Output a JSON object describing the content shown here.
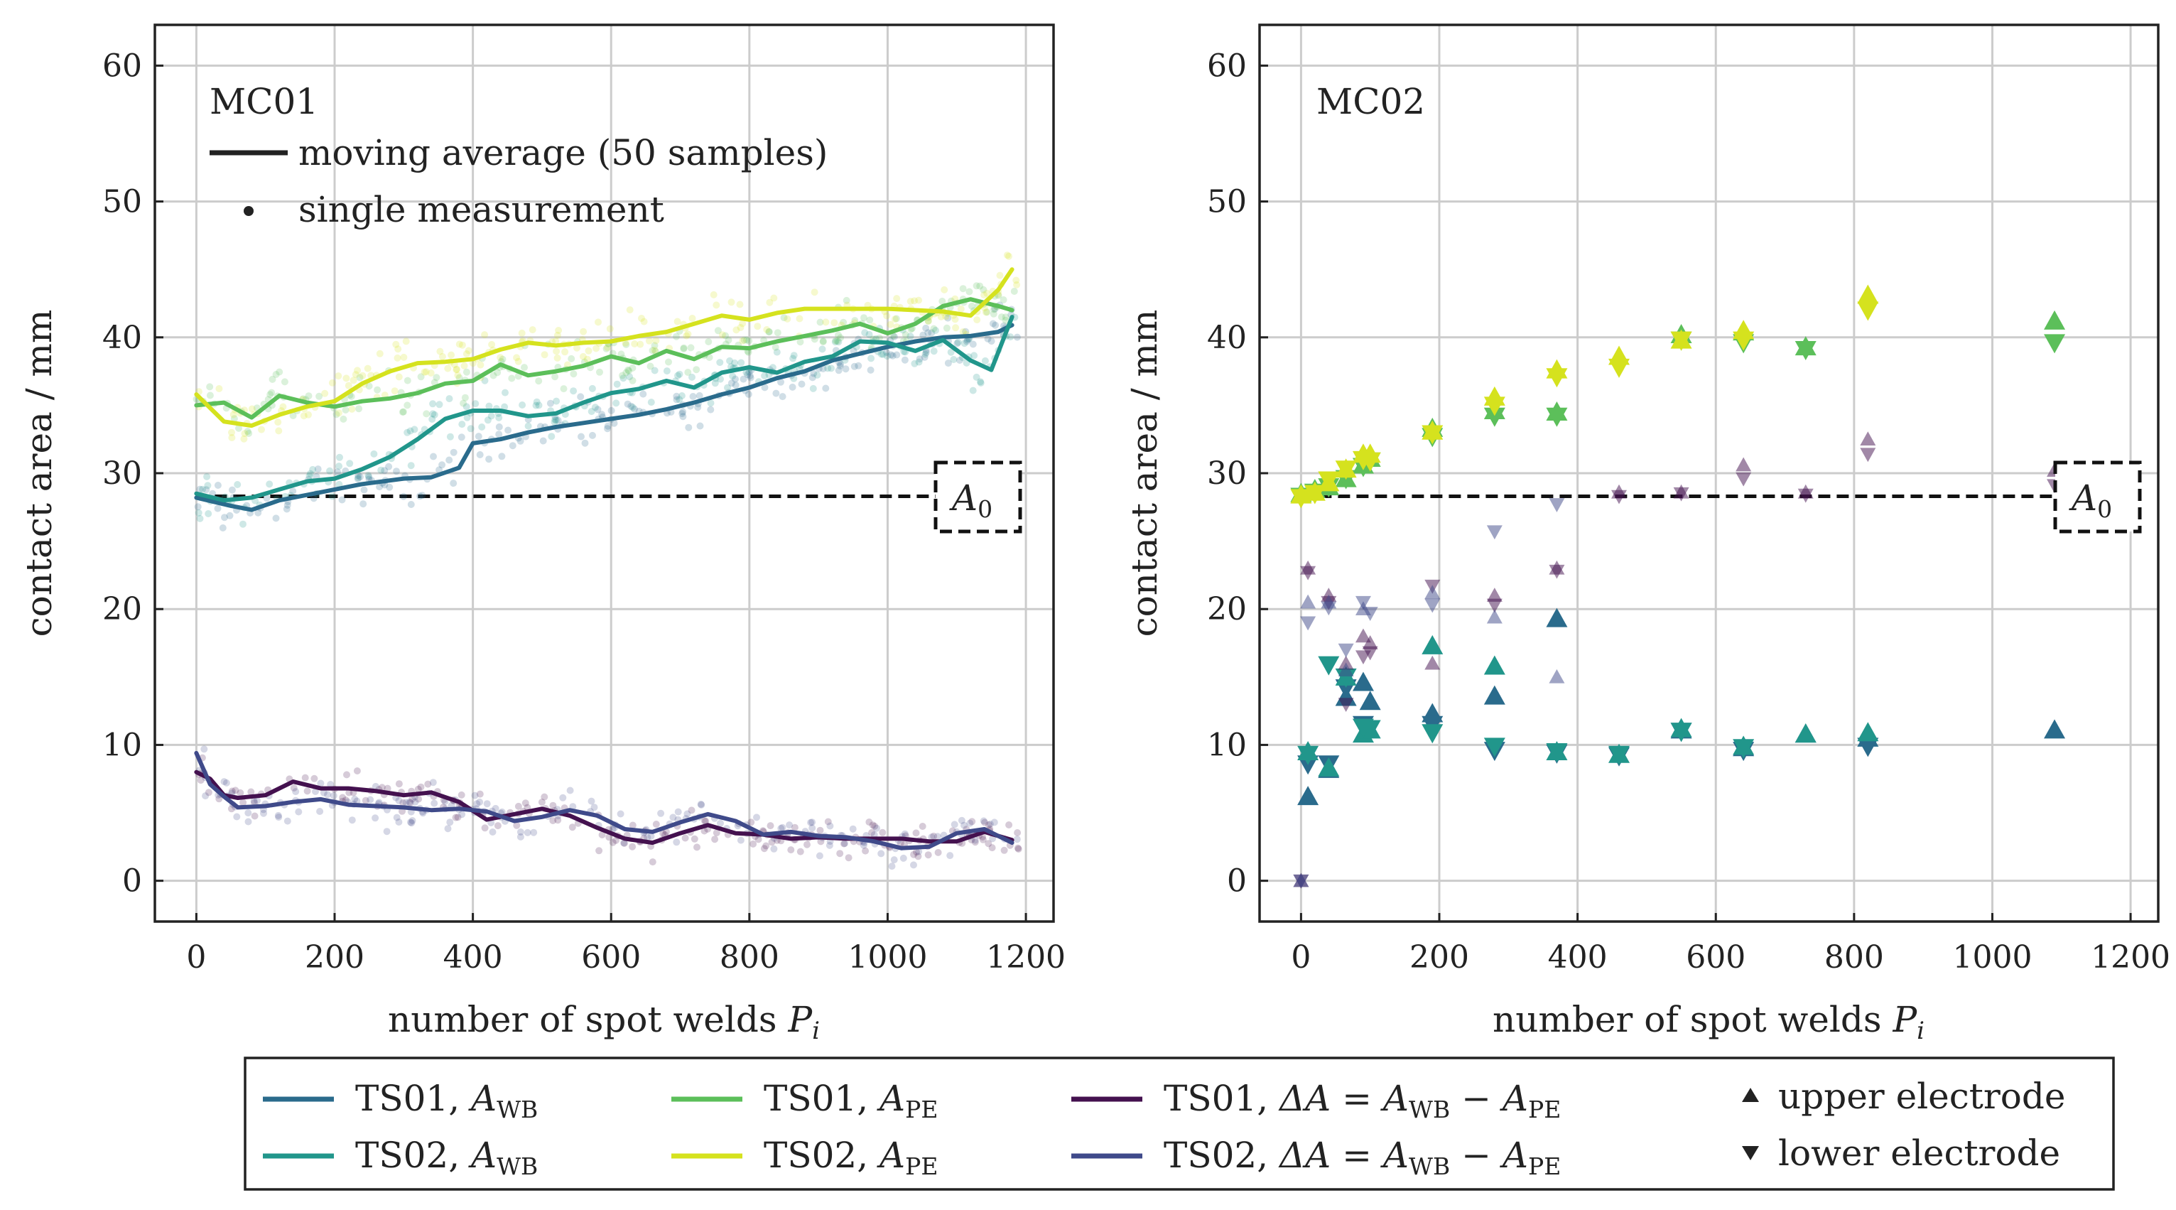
{
  "colors": {
    "TS01_WB": "#2a6b8c",
    "TS02_WB": "#21968b",
    "TS01_PE": "#5cbf5a",
    "TS02_PE": "#d5e21e",
    "TS01_dA": "#44114f",
    "TS02_dA": "#3f4a8a",
    "ref": "#111111",
    "grid": "#cccccc"
  },
  "legend": {
    "items": [
      {
        "key": "TS01_WB",
        "ts": "TS01, ",
        "var": "A",
        "sub": "WB",
        "expr": ""
      },
      {
        "key": "TS02_WB",
        "ts": "TS02, ",
        "var": "A",
        "sub": "WB",
        "expr": ""
      },
      {
        "key": "TS01_PE",
        "ts": "TS01, ",
        "var": "A",
        "sub": "PE",
        "expr": ""
      },
      {
        "key": "TS02_PE",
        "ts": "TS02, ",
        "var": "A",
        "sub": "PE",
        "expr": ""
      },
      {
        "key": "TS01_dA",
        "ts": "TS01, ",
        "var": "ΔA = A",
        "sub": "WB",
        "expr": " − A",
        "sub2": "PE"
      },
      {
        "key": "TS02_dA",
        "ts": "TS02, ",
        "var": "ΔA = A",
        "sub": "WB",
        "expr": " − A",
        "sub2": "PE"
      }
    ],
    "upper": "upper electrode",
    "lower": "lower electrode"
  },
  "chart_data": [
    {
      "type": "scatter",
      "panel_label": "MC01",
      "xlabel": "number of spot welds",
      "xlabel_var": "P",
      "xlabel_sub": "i",
      "ylabel": "contact area / mm",
      "xlim": [
        -60,
        1240
      ],
      "ylim": [
        -3,
        63
      ],
      "xticks": [
        0,
        200,
        400,
        600,
        800,
        1000,
        1200
      ],
      "yticks": [
        0,
        10,
        20,
        30,
        40,
        50,
        60
      ],
      "grid": true,
      "inner_legend": {
        "line_label": "moving average (50 samples)",
        "dot_label": "single measurement",
        "placement": "top-left"
      },
      "reference": {
        "label_var": "A",
        "label_sub": "0",
        "y": 28.3
      },
      "series": [
        {
          "name": "TS01, A_WB",
          "key": "TS01_WB",
          "kind": "moving average",
          "x": [
            0,
            50,
            80,
            120,
            180,
            240,
            300,
            340,
            380,
            400,
            440,
            480,
            520,
            560,
            600,
            640,
            680,
            720,
            760,
            800,
            840,
            880,
            920,
            960,
            1000,
            1040,
            1080,
            1120,
            1160,
            1180
          ],
          "y": [
            28.2,
            27.6,
            27.3,
            28,
            28.6,
            29.2,
            29.6,
            29.7,
            30.4,
            32.2,
            32.5,
            33,
            33.4,
            33.7,
            34,
            34.3,
            34.7,
            35.2,
            35.8,
            36.3,
            37,
            37.5,
            38.3,
            38.8,
            39.3,
            39.7,
            40,
            40.1,
            40.4,
            40.9
          ]
        },
        {
          "name": "TS02, A_WB",
          "key": "TS02_WB",
          "kind": "moving average",
          "x": [
            0,
            40,
            80,
            120,
            160,
            200,
            240,
            280,
            320,
            360,
            400,
            440,
            480,
            520,
            560,
            600,
            640,
            680,
            720,
            760,
            800,
            840,
            880,
            920,
            960,
            1000,
            1040,
            1080,
            1120,
            1150,
            1180
          ],
          "y": [
            28.5,
            28,
            28.2,
            28.8,
            29.4,
            29.6,
            30.3,
            31.2,
            32.5,
            34,
            34.6,
            34.6,
            34.2,
            34.4,
            35.2,
            35.9,
            36.2,
            36.8,
            36.3,
            37.4,
            37.8,
            37.4,
            38.2,
            38.6,
            39.7,
            39.6,
            39,
            39.8,
            38.3,
            37.6,
            41.5
          ]
        },
        {
          "name": "TS01, A_PE",
          "key": "TS01_PE",
          "kind": "moving average",
          "x": [
            0,
            40,
            80,
            120,
            160,
            200,
            240,
            280,
            320,
            360,
            400,
            440,
            480,
            520,
            560,
            600,
            640,
            680,
            720,
            760,
            800,
            840,
            880,
            920,
            960,
            1000,
            1040,
            1080,
            1120,
            1160,
            1180
          ],
          "y": [
            35,
            35.2,
            34.1,
            35.7,
            35.2,
            34.9,
            35.3,
            35.5,
            35.9,
            36.6,
            36.8,
            38,
            37.2,
            37.5,
            37.9,
            38.6,
            38.1,
            39,
            38.4,
            39.3,
            39.2,
            39.7,
            40.1,
            40.5,
            41,
            40.3,
            41,
            42.3,
            42.8,
            42.3,
            42
          ]
        },
        {
          "name": "TS02, A_PE",
          "key": "TS02_PE",
          "kind": "moving average",
          "x": [
            0,
            40,
            80,
            120,
            160,
            200,
            240,
            280,
            320,
            360,
            400,
            440,
            480,
            520,
            560,
            600,
            640,
            680,
            720,
            760,
            800,
            840,
            880,
            920,
            960,
            1000,
            1040,
            1080,
            1120,
            1160,
            1180
          ],
          "y": [
            35.8,
            33.8,
            33.5,
            34.3,
            34.9,
            35.3,
            36.6,
            37.5,
            38.1,
            38.2,
            38.4,
            39.1,
            39.6,
            39.4,
            39.6,
            39.7,
            40.1,
            40.4,
            41,
            41.6,
            41.3,
            41.8,
            42.1,
            42.1,
            42.1,
            42.1,
            42,
            41.9,
            41.6,
            43.5,
            45
          ]
        },
        {
          "name": "TS01, ΔA",
          "key": "TS01_dA",
          "kind": "moving average",
          "x": [
            0,
            20,
            40,
            60,
            100,
            140,
            180,
            220,
            260,
            300,
            340,
            380,
            420,
            460,
            500,
            540,
            580,
            620,
            660,
            700,
            740,
            780,
            820,
            860,
            900,
            940,
            980,
            1020,
            1060,
            1100,
            1140,
            1180
          ],
          "y": [
            8,
            7.5,
            6.3,
            6.1,
            6.3,
            7.3,
            6.8,
            6.8,
            6.6,
            6.3,
            6.5,
            5.8,
            4.5,
            4.9,
            5.3,
            4.8,
            3.9,
            3.1,
            2.8,
            3.5,
            4.1,
            3.5,
            3.4,
            3.1,
            3.2,
            3.1,
            3.1,
            3.1,
            2.9,
            2.9,
            3.6,
            3
          ]
        },
        {
          "name": "TS02, ΔA",
          "key": "TS02_dA",
          "kind": "moving average",
          "x": [
            0,
            20,
            40,
            60,
            100,
            140,
            180,
            220,
            260,
            300,
            340,
            380,
            420,
            460,
            500,
            540,
            580,
            620,
            660,
            700,
            740,
            780,
            820,
            860,
            900,
            940,
            980,
            1020,
            1060,
            1100,
            1140,
            1180
          ],
          "y": [
            9.4,
            7.1,
            6.2,
            5.4,
            5.5,
            5.8,
            6,
            5.6,
            5.5,
            5.4,
            5.2,
            5.3,
            5.1,
            4.4,
            4.7,
            5.2,
            4.8,
            3.8,
            3.6,
            4.3,
            4.9,
            4.4,
            3.4,
            3.6,
            3.3,
            3.2,
            2.9,
            2.4,
            2.5,
            3.5,
            3.8,
            2.8
          ]
        }
      ]
    },
    {
      "type": "scatter",
      "panel_label": "MC02",
      "xlabel": "number of spot welds",
      "xlabel_var": "P",
      "xlabel_sub": "i",
      "ylabel": "contact area / mm",
      "xlim": [
        -60,
        1240
      ],
      "ylim": [
        -3,
        63
      ],
      "xticks": [
        0,
        200,
        400,
        600,
        800,
        1000,
        1200
      ],
      "yticks": [
        0,
        10,
        20,
        30,
        40,
        50,
        60
      ],
      "grid": true,
      "reference": {
        "label_var": "A",
        "label_sub": "0",
        "y": 28.3
      },
      "series": [
        {
          "name": "TS01, A_WB upper",
          "key": "TS01_WB",
          "marker": "upper",
          "x": [
            10,
            40,
            65,
            90,
            100,
            190,
            280,
            370,
            550,
            640,
            730,
            820,
            1090
          ],
          "y": [
            6.2,
            8.2,
            13.5,
            14.6,
            13.2,
            12.3,
            13.6,
            19.3,
            11.1,
            9.8,
            10.8,
            10.5,
            11.1
          ]
        },
        {
          "name": "TS01, A_WB lower",
          "key": "TS01_WB",
          "marker": "lower",
          "x": [
            10,
            40,
            65,
            90,
            190,
            280,
            370,
            460,
            550,
            640,
            820
          ],
          "y": [
            8.6,
            8.6,
            14.2,
            11.5,
            11.5,
            9.6,
            9.4,
            9.2,
            11,
            9.6,
            9.9
          ]
        },
        {
          "name": "TS02, A_WB upper",
          "key": "TS02_WB",
          "marker": "upper",
          "x": [
            10,
            40,
            65,
            90,
            100,
            190,
            280,
            370,
            460,
            550,
            640,
            730,
            820
          ],
          "y": [
            9.5,
            8.3,
            15,
            10.8,
            11.1,
            17.3,
            15.8,
            9.5,
            9.3,
            11.2,
            9.9,
            10.8,
            10.9
          ]
        },
        {
          "name": "TS02, A_WB lower",
          "key": "TS02_WB",
          "marker": "lower",
          "x": [
            10,
            40,
            65,
            90,
            100,
            190,
            280,
            370,
            460,
            550,
            640
          ],
          "y": [
            9.3,
            15.9,
            15,
            11.3,
            11.2,
            10.9,
            9.9,
            9.5,
            9.3,
            11,
            9.8
          ]
        },
        {
          "name": "TS01, A_PE upper",
          "key": "TS01_PE",
          "marker": "upper",
          "x": [
            0,
            20,
            40,
            65,
            90,
            100,
            190,
            280,
            370,
            550,
            640,
            730,
            1090
          ],
          "y": [
            28.5,
            28.8,
            29,
            29.6,
            30.6,
            31.1,
            33.3,
            34.6,
            34.5,
            40.2,
            40.4,
            39.3,
            41.2
          ]
        },
        {
          "name": "TS01, A_PE lower",
          "key": "TS01_PE",
          "marker": "lower",
          "x": [
            0,
            20,
            40,
            65,
            90,
            100,
            190,
            280,
            370,
            550,
            640,
            730,
            1090
          ],
          "y": [
            28.3,
            28.6,
            29,
            29.6,
            30.5,
            30.9,
            32.7,
            34.2,
            34.2,
            39.8,
            39.6,
            39.1,
            39.6
          ]
        },
        {
          "name": "TS02, A_PE upper",
          "key": "TS02_PE",
          "marker": "upper",
          "x": [
            0,
            20,
            40,
            65,
            90,
            100,
            190,
            280,
            370,
            460,
            550,
            640,
            820
          ],
          "y": [
            28.4,
            28.6,
            29.3,
            30.3,
            31.4,
            31.4,
            33.1,
            35.6,
            37.6,
            38.6,
            39.8,
            40.5,
            43.1
          ]
        },
        {
          "name": "TS02, A_PE lower",
          "key": "TS02_PE",
          "marker": "lower",
          "x": [
            0,
            20,
            40,
            65,
            90,
            100,
            190,
            280,
            370,
            460,
            550,
            640,
            820
          ],
          "y": [
            28.2,
            28.5,
            29.5,
            30.3,
            31,
            30.9,
            32.9,
            35,
            37.1,
            37.8,
            39.8,
            39.8,
            42
          ]
        },
        {
          "name": "TS01, ΔA upper",
          "key": "TS01_dA",
          "marker": "upper",
          "x": [
            0,
            10,
            40,
            65,
            90,
            100,
            190,
            280,
            370,
            460,
            550,
            640,
            730,
            820,
            1090
          ],
          "y": [
            0,
            23,
            21,
            16,
            18,
            17.5,
            16,
            21,
            23,
            28.6,
            28.6,
            30.6,
            28.6,
            32.5,
            30.2
          ]
        },
        {
          "name": "TS01, ΔA lower",
          "key": "TS01_dA",
          "marker": "lower",
          "x": [
            0,
            10,
            40,
            65,
            90,
            100,
            190,
            280,
            370,
            460,
            550,
            640,
            730,
            820,
            1090
          ],
          "y": [
            0,
            22.7,
            20.5,
            13,
            16.5,
            16.8,
            21.7,
            20.3,
            22.8,
            28.3,
            28.5,
            29.6,
            28.4,
            31.4,
            29.1
          ]
        },
        {
          "name": "TS02, ΔA upper",
          "key": "TS02_dA",
          "marker": "upper",
          "x": [
            0,
            10,
            40,
            65,
            90,
            190,
            280,
            370
          ],
          "y": [
            0,
            20.5,
            20.5,
            15.5,
            20,
            21.2,
            19.4,
            15
          ]
        },
        {
          "name": "TS02, ΔA lower",
          "key": "TS02_dA",
          "marker": "lower",
          "x": [
            0,
            10,
            40,
            65,
            90,
            100,
            190,
            280,
            370
          ],
          "y": [
            0,
            19,
            20.1,
            17,
            20.5,
            19.7,
            20.3,
            25.7,
            27.7
          ]
        }
      ]
    }
  ]
}
